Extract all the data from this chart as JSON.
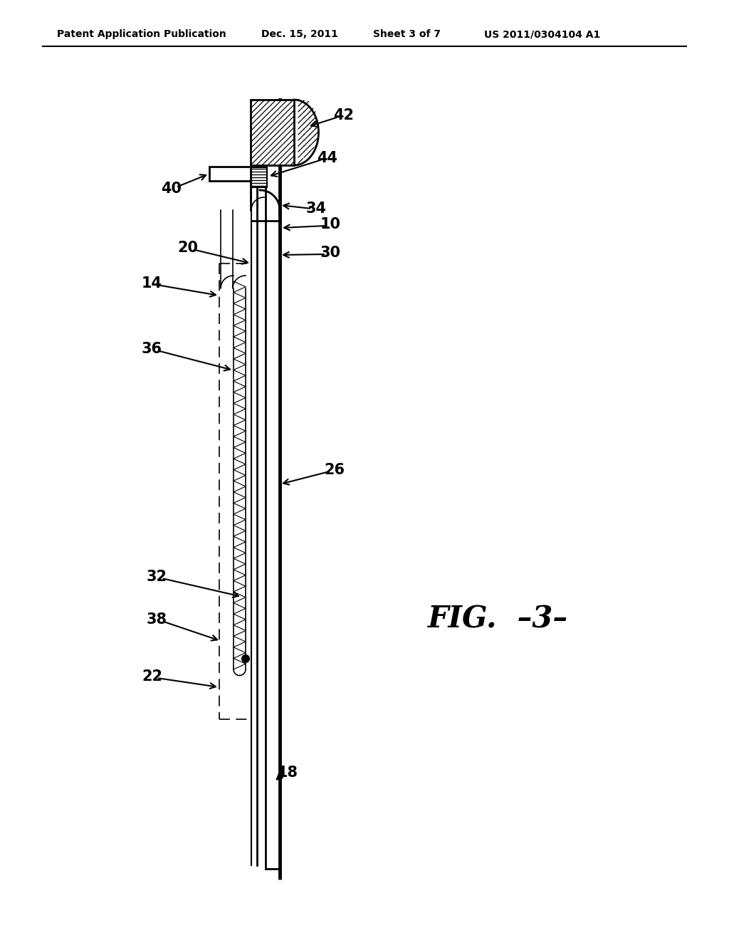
{
  "bg_color": "#ffffff",
  "header_text": "Patent Application Publication",
  "header_date": "Dec. 15, 2011",
  "header_sheet": "Sheet 3 of 7",
  "header_patent": "US 2011/0304104 A1",
  "fig_label": "FIG.  –3–",
  "fig_label_alt": "FIG.  -3-"
}
